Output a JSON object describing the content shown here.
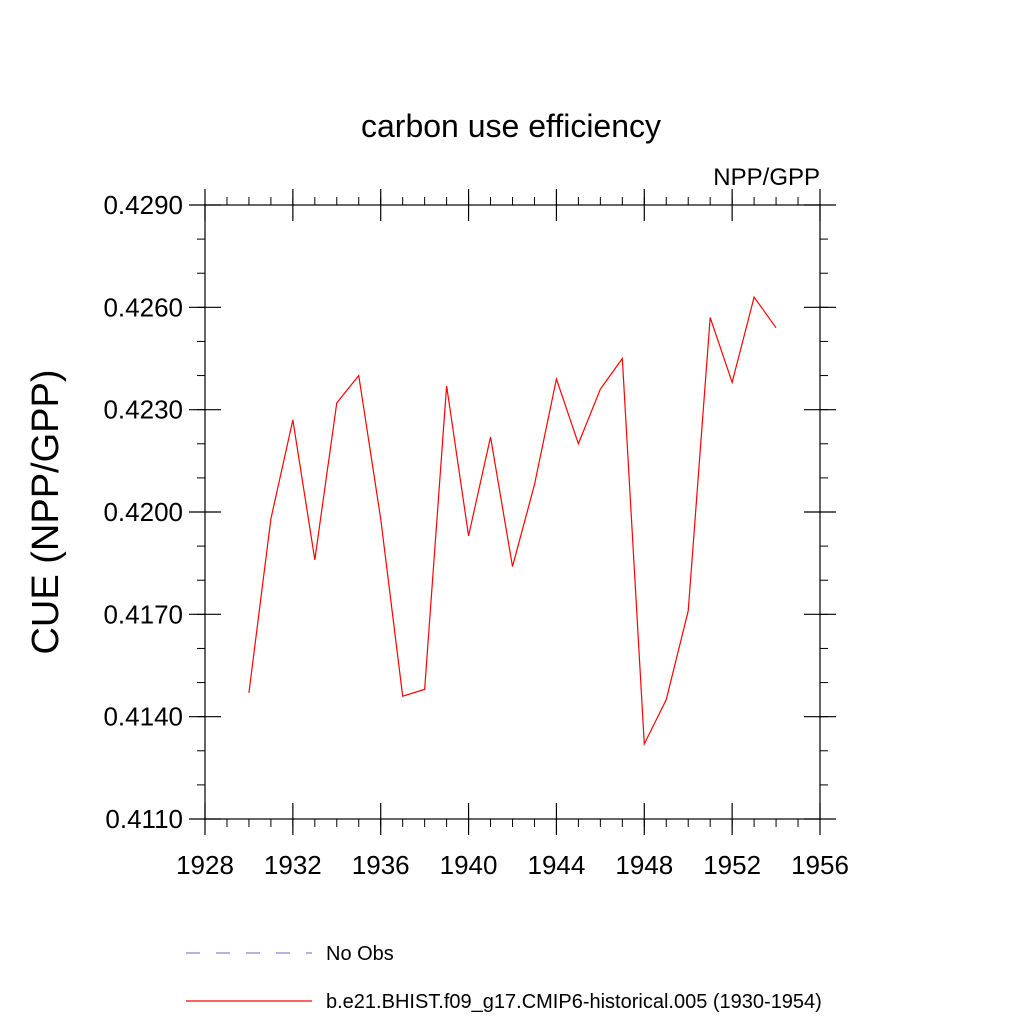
{
  "chart_data": {
    "type": "line",
    "title": "carbon use efficiency",
    "subtitle": "NPP/GPP",
    "xlabel": "",
    "ylabel": "CUE  (NPP/GPP)",
    "xlim": [
      1928,
      1956
    ],
    "ylim": [
      0.411,
      0.429
    ],
    "xticks": [
      "1928",
      "1932",
      "1936",
      "1940",
      "1944",
      "1948",
      "1952",
      "1956"
    ],
    "yticks": [
      "0.4110",
      "0.4140",
      "0.4170",
      "0.4200",
      "0.4230",
      "0.4260",
      "0.4290"
    ],
    "grid": false,
    "series": [
      {
        "name": "b.e21.BHIST.f09_g17.CMIP6-historical.005 (1930-1954)",
        "color": "#ff0000",
        "style": "solid",
        "x": [
          1930,
          1931,
          1932,
          1933,
          1934,
          1935,
          1936,
          1937,
          1938,
          1939,
          1940,
          1941,
          1942,
          1943,
          1944,
          1945,
          1946,
          1947,
          1948,
          1949,
          1950,
          1951,
          1952,
          1953,
          1954
        ],
        "y": [
          0.4147,
          0.4198,
          0.4227,
          0.4186,
          0.4232,
          0.424,
          0.4198,
          0.4146,
          0.4148,
          0.4237,
          0.4193,
          0.4222,
          0.4184,
          0.4208,
          0.4239,
          0.422,
          0.4236,
          0.4245,
          0.4132,
          0.4145,
          0.4171,
          0.4257,
          0.4238,
          0.4263,
          0.4254
        ]
      }
    ],
    "legend": [
      {
        "label": "No Obs",
        "color": "#8888cc",
        "style": "dashed"
      },
      {
        "label": "b.e21.BHIST.f09_g17.CMIP6-historical.005 (1930-1954)",
        "color": "#ff0000",
        "style": "solid"
      }
    ]
  }
}
